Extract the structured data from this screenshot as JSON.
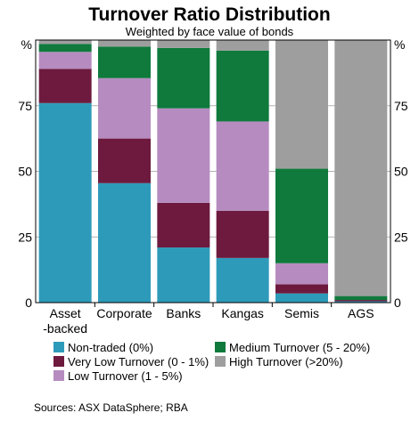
{
  "chart_data": {
    "type": "bar",
    "stacked": true,
    "title": "Turnover Ratio Distribution",
    "subtitle": "Weighted by face value of bonds",
    "y_unit": "%",
    "ylim": [
      0,
      100
    ],
    "yticks": [
      0,
      25,
      50,
      75
    ],
    "categories": [
      "Asset -backed",
      "Corporate",
      "Banks",
      "Kangas",
      "Semis",
      "AGS"
    ],
    "category_lines": [
      [
        "Asset",
        "-backed"
      ],
      [
        "Corporate"
      ],
      [
        "Banks"
      ],
      [
        "Kangas"
      ],
      [
        "Semis"
      ],
      [
        "AGS"
      ]
    ],
    "series": [
      {
        "name": "Non-traded (0%)",
        "color": "#2e9ab9",
        "values": [
          76,
          45.5,
          21,
          17,
          3.5,
          0.5
        ]
      },
      {
        "name": "Very Low Turnover (0 - 1%)",
        "color": "#6d1a3e",
        "values": [
          13,
          17,
          17,
          18,
          3.5,
          0.5
        ]
      },
      {
        "name": "Low Turnover (1 - 5%)",
        "color": "#b68cc0",
        "values": [
          6.5,
          23,
          36,
          34,
          8,
          0
        ]
      },
      {
        "name": "Medium Turnover (5 - 20%)",
        "color": "#0f7a3c",
        "values": [
          3,
          12,
          23,
          27,
          36,
          1.5
        ]
      },
      {
        "name": "High Turnover (>20%)",
        "color": "#9e9e9e",
        "values": [
          1.5,
          2.5,
          3,
          4,
          49,
          97.5
        ]
      }
    ],
    "legend_placement": "bottom",
    "grid": true,
    "source": "Sources: ASX DataSphere; RBA"
  }
}
